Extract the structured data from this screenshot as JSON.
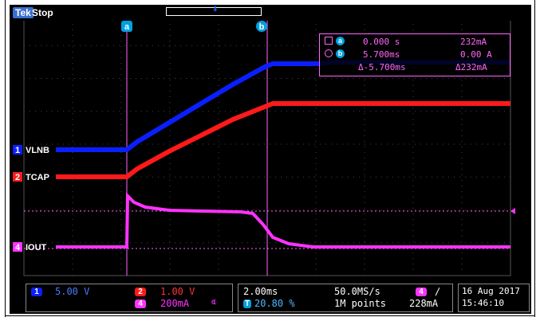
{
  "header": {
    "brand": "Tek",
    "acq_state": "Stop"
  },
  "channels": [
    {
      "id": "1",
      "label": "VLNB",
      "color": "#0a1fff"
    },
    {
      "id": "2",
      "label": "TCAP",
      "color": "#ff1a1a"
    },
    {
      "id": "4",
      "label": "IOUT",
      "color": "#ff33ff"
    }
  ],
  "cursors": {
    "a_badge": "a",
    "b_badge": "b",
    "a_time": "0.000 s",
    "a_value": "232mA",
    "b_time": "5.700ms",
    "b_value": "0.00 A",
    "delta_time": "Δ-5.700ms",
    "delta_value": "Δ232mA"
  },
  "status": {
    "ch1_scale": "5.00 V",
    "ch2_scale": "1.00 V",
    "ch4_scale": "200mA",
    "ch4_bw": "ɶ",
    "timebase": "2.00ms",
    "sample_rate": "50.0MS/s",
    "trigger_pos": "20.80 %",
    "record_length": "1M points",
    "trigger_channel": "4",
    "trigger_slope": "∕",
    "trigger_level": "228mA",
    "date": "16 Aug 2017",
    "time": "15:46:10"
  }
}
